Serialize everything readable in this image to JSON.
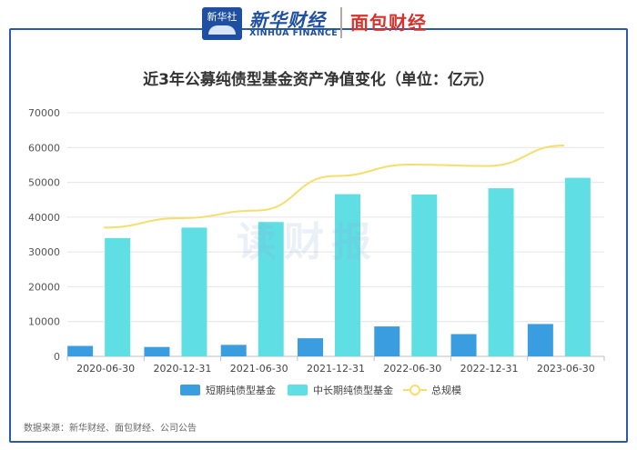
{
  "header": {
    "xinhua_badge": "新华社",
    "xinhua_cn": "新华财经",
    "xinhua_en": "XINHUA FINANCE",
    "miandian_logo": "面包财经"
  },
  "watermark": "读财报",
  "source_note": "数据来源：新华财经、面包财经、公司公告",
  "colors": {
    "short_bar": "#3a9de0",
    "long_bar": "#5fdfe3",
    "total_line": "#f5de6b",
    "frame": "#2b5aa8"
  },
  "chart_data": {
    "type": "bar",
    "title": "近3年公募纯债型基金资产净值变化（单位：亿元）",
    "categories": [
      "2020-06-30",
      "2020-12-31",
      "2021-06-30",
      "2021-12-31",
      "2022-06-30",
      "2022-12-31",
      "2023-06-30"
    ],
    "ylim": [
      0,
      70000
    ],
    "yticks": [
      "0",
      "10000",
      "20000",
      "30000",
      "40000",
      "50000",
      "60000",
      "70000"
    ],
    "grid": true,
    "legend_position": "bottom",
    "series": [
      {
        "name": "短期纯债型基金",
        "type": "bar",
        "values": [
          3000,
          2700,
          3300,
          5200,
          8600,
          6400,
          9300
        ]
      },
      {
        "name": "中长期纯债型基金",
        "type": "bar",
        "values": [
          34000,
          37000,
          38600,
          46600,
          46500,
          48300,
          51300
        ]
      },
      {
        "name": "总规模",
        "type": "line",
        "values": [
          37000,
          39700,
          41900,
          51800,
          55100,
          54700,
          60600
        ]
      }
    ]
  }
}
